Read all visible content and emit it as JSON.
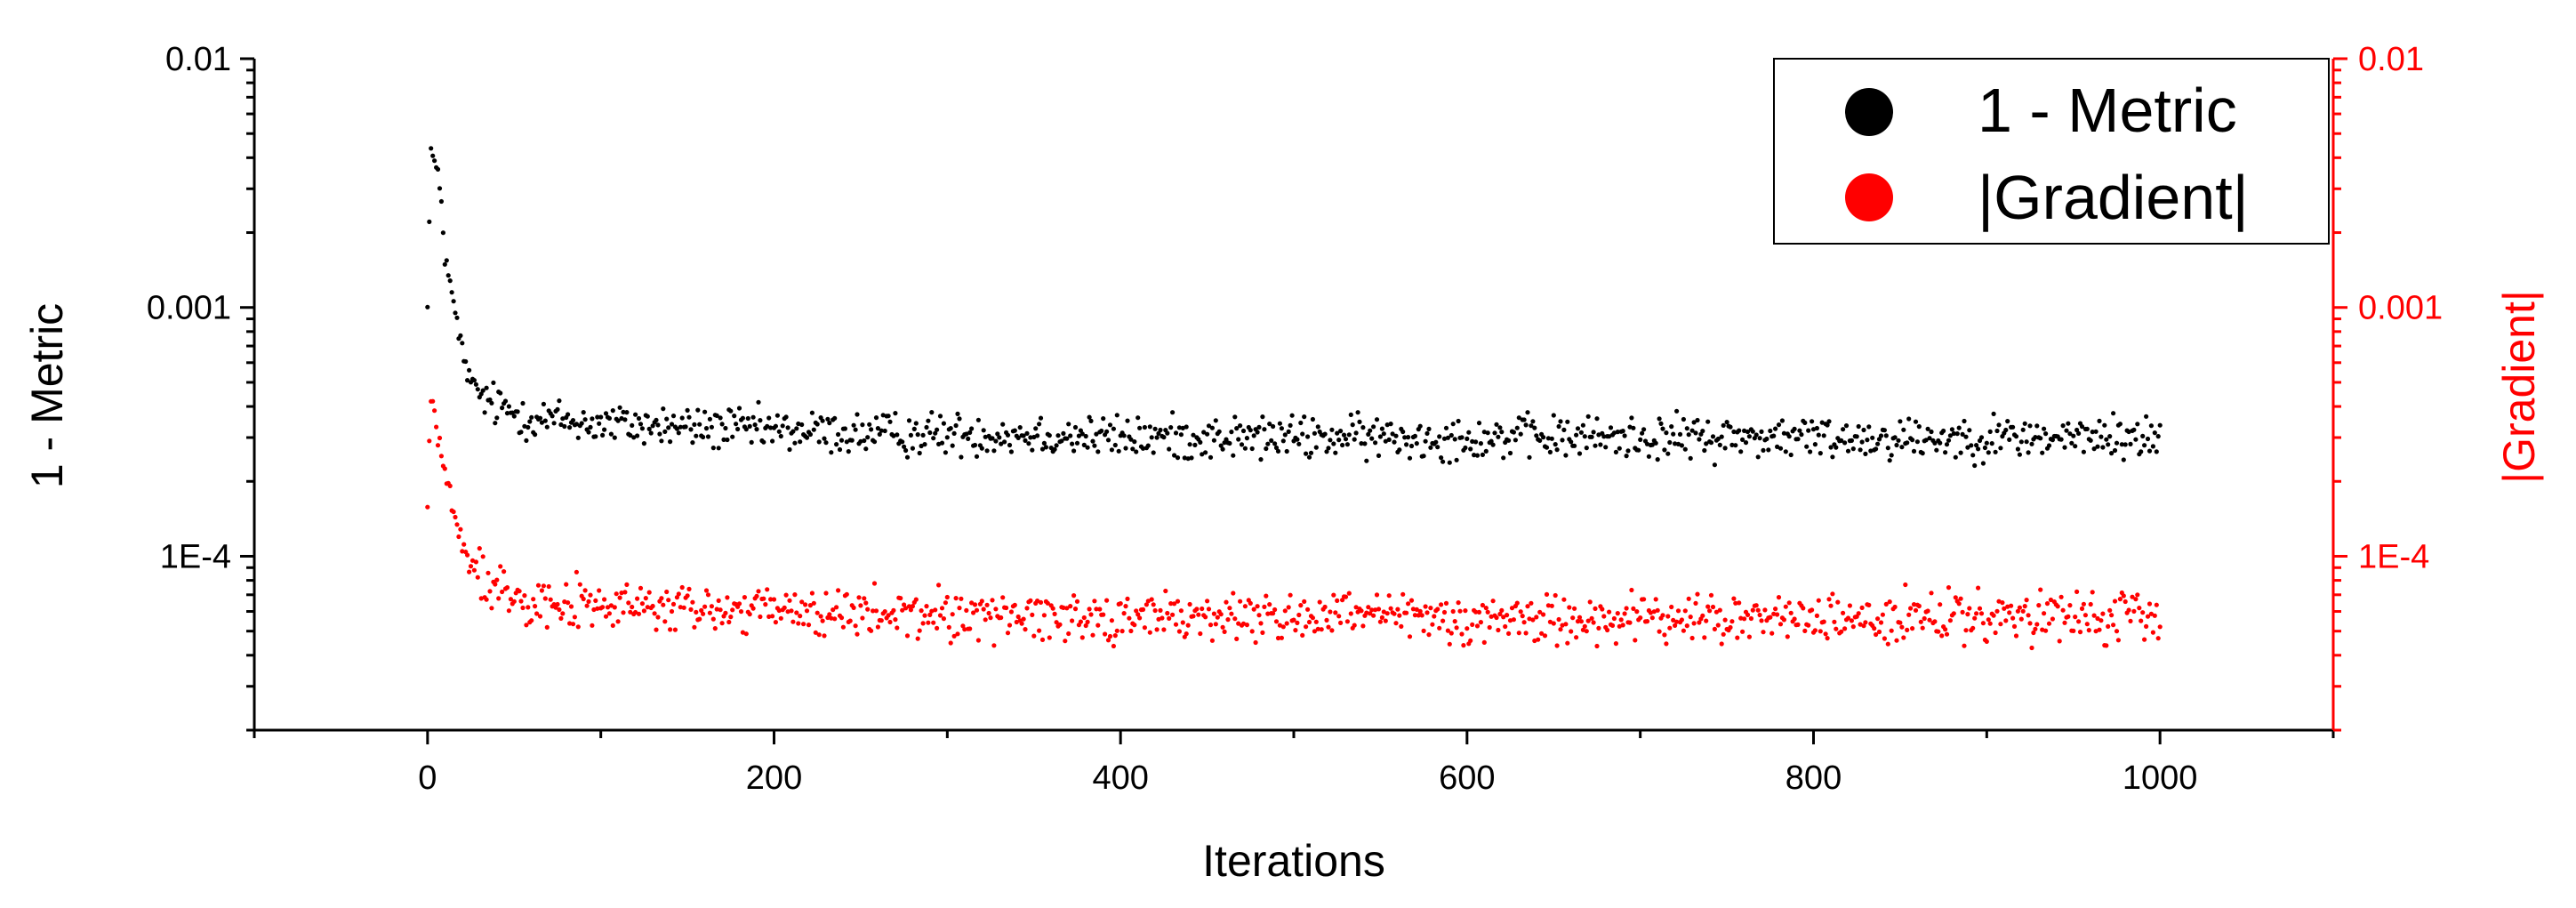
{
  "chart_data": {
    "type": "scatter",
    "xlabel": "Iterations",
    "ylabel_left": "1 - Metric",
    "ylabel_right": "|Gradient|",
    "xlim": [
      -100,
      1100
    ],
    "ylim": [
      2e-05,
      0.01
    ],
    "y_scale": "log",
    "x_ticks": [
      0,
      200,
      400,
      600,
      800,
      1000
    ],
    "y_ticks": [
      {
        "value": 0.01,
        "label": "0.01"
      },
      {
        "value": 0.001,
        "label": "0.001"
      },
      {
        "value": 0.0001,
        "label": "1E-4"
      }
    ],
    "legend": {
      "position": "top-right",
      "entries": [
        {
          "label": "1 - Metric",
          "color": "#000000"
        },
        {
          "label": "|Gradient|",
          "color": "#ff0000"
        }
      ]
    },
    "series": [
      {
        "name": "1 - Metric",
        "axis": "left",
        "color": "#000000",
        "x": [
          0,
          2,
          4,
          6,
          8,
          10,
          12,
          14,
          16,
          18,
          20,
          22,
          25,
          30,
          35,
          40,
          50,
          60,
          80,
          100,
          150,
          200,
          250,
          300,
          350,
          400,
          450,
          500,
          550,
          600,
          650,
          700,
          750,
          800,
          850,
          900,
          950,
          1000
        ],
        "y": [
          0.0011,
          0.0043,
          0.0038,
          0.0033,
          0.0027,
          0.0016,
          0.0014,
          0.0011,
          0.00095,
          0.00078,
          0.00068,
          0.00058,
          0.0005,
          0.00045,
          0.00042,
          0.0004,
          0.00038,
          0.00036,
          0.00035,
          0.00034,
          0.00033,
          0.00032,
          0.00031,
          0.00031,
          0.00031,
          0.0003,
          0.0003,
          0.0003,
          0.0003,
          0.0003,
          0.0003,
          0.0003,
          0.0003,
          0.0003,
          0.0003,
          0.0003,
          0.0003,
          0.0003
        ],
        "noise_log_amplitude": 0.13
      },
      {
        "name": "|Gradient|",
        "axis": "right",
        "color": "#ff0000",
        "x": [
          0,
          2,
          4,
          6,
          8,
          10,
          12,
          14,
          16,
          18,
          20,
          22,
          25,
          30,
          35,
          40,
          50,
          60,
          80,
          100,
          150,
          200,
          250,
          300,
          350,
          400,
          450,
          500,
          550,
          600,
          650,
          700,
          750,
          800,
          850,
          900,
          950,
          1000
        ],
        "y": [
          0.00016,
          0.00045,
          0.00038,
          0.0003,
          0.00026,
          0.00022,
          0.00019,
          0.00016,
          0.00014,
          0.00012,
          0.00011,
          0.0001,
          9.2e-05,
          8.5e-05,
          8e-05,
          7.6e-05,
          7.2e-05,
          6.8e-05,
          6.5e-05,
          6.3e-05,
          6.1e-05,
          6e-05,
          5.8e-05,
          5.8e-05,
          5.8e-05,
          5.7e-05,
          5.7e-05,
          5.7e-05,
          5.7e-05,
          5.6e-05,
          5.6e-05,
          5.6e-05,
          5.6e-05,
          5.6e-05,
          5.6e-05,
          5.6e-05,
          5.6e-05,
          5.6e-05
        ],
        "noise_log_amplitude": 0.15
      }
    ]
  }
}
